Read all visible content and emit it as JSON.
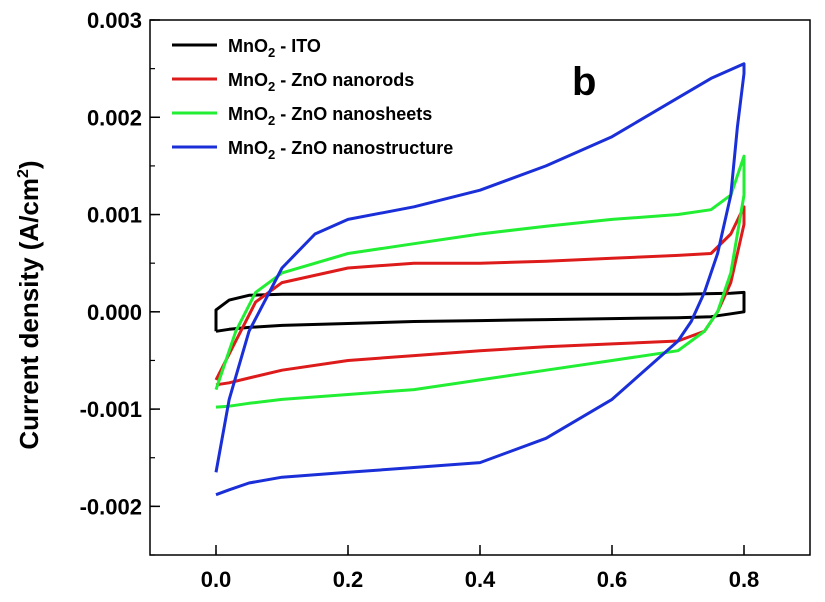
{
  "chart_data": {
    "type": "line",
    "title": "",
    "panel_label": "b",
    "ylabel_main": "Current density (A/cm",
    "ylabel_sup": "2",
    "ylabel_close": ")",
    "xlabel": "",
    "xlim": [
      -0.1,
      0.9
    ],
    "ylim": [
      -0.0025,
      0.003
    ],
    "x_ticks": [
      0.0,
      0.2,
      0.4,
      0.6,
      0.8
    ],
    "x_tick_labels": [
      "0.0",
      "0.2",
      "0.4",
      "0.6",
      "0.8"
    ],
    "y_ticks": [
      -0.002,
      -0.001,
      0.0,
      0.001,
      0.002,
      0.003
    ],
    "y_tick_labels": [
      "-0.002",
      "-0.001",
      "0.000",
      "0.001",
      "0.002",
      "0.003"
    ],
    "grid": false,
    "legend_position": "top-left",
    "series": [
      {
        "name_main": "MnO",
        "name_sub": "2",
        "name_rest": " - ITO",
        "color": "#000000",
        "x": [
          0.0,
          0.02,
          0.05,
          0.1,
          0.2,
          0.3,
          0.4,
          0.5,
          0.6,
          0.7,
          0.75,
          0.78,
          0.8,
          0.8,
          0.78,
          0.7,
          0.6,
          0.5,
          0.4,
          0.3,
          0.2,
          0.1,
          0.05,
          0.02,
          0.0,
          0.0
        ],
        "y": [
          -0.0002,
          -0.00018,
          -0.00016,
          -0.00014,
          -0.00012,
          -0.0001,
          -9e-05,
          -8e-05,
          -7e-05,
          -6e-05,
          -5e-05,
          -2e-05,
          0.0,
          0.0002,
          0.00019,
          0.00018,
          0.00018,
          0.00018,
          0.00018,
          0.00018,
          0.00018,
          0.00018,
          0.00017,
          0.00012,
          2e-05,
          -0.0002
        ]
      },
      {
        "name_main": "MnO",
        "name_sub": "2",
        "name_rest": " - ZnO nanorods",
        "color": "#dd1b1b",
        "x": [
          0.0,
          0.03,
          0.06,
          0.1,
          0.2,
          0.3,
          0.4,
          0.5,
          0.6,
          0.7,
          0.75,
          0.78,
          0.8,
          0.8,
          0.78,
          0.76,
          0.74,
          0.72,
          0.7,
          0.6,
          0.5,
          0.4,
          0.3,
          0.2,
          0.1,
          0.05,
          0.02,
          0.0
        ],
        "y": [
          -0.0007,
          -0.0003,
          0.0001,
          0.0003,
          0.00045,
          0.0005,
          0.0005,
          0.00052,
          0.00055,
          0.00058,
          0.0006,
          0.0008,
          0.00108,
          0.0009,
          0.0003,
          0.0,
          -0.0002,
          -0.00025,
          -0.0003,
          -0.00033,
          -0.00036,
          -0.0004,
          -0.00045,
          -0.0005,
          -0.0006,
          -0.00068,
          -0.00073,
          -0.00075
        ]
      },
      {
        "name_main": "MnO",
        "name_sub": "2",
        "name_rest": " - ZnO nanosheets",
        "color": "#22ee33",
        "x": [
          0.0,
          0.03,
          0.06,
          0.1,
          0.2,
          0.3,
          0.4,
          0.5,
          0.6,
          0.7,
          0.75,
          0.78,
          0.8,
          0.8,
          0.78,
          0.76,
          0.74,
          0.72,
          0.7,
          0.6,
          0.5,
          0.4,
          0.3,
          0.2,
          0.1,
          0.05,
          0.02,
          0.0
        ],
        "y": [
          -0.0008,
          -0.0002,
          0.0002,
          0.0004,
          0.0006,
          0.0007,
          0.0008,
          0.00088,
          0.00095,
          0.001,
          0.00105,
          0.0012,
          0.0016,
          0.0012,
          0.0004,
          0.0,
          -0.0002,
          -0.0003,
          -0.0004,
          -0.0005,
          -0.0006,
          -0.0007,
          -0.0008,
          -0.00085,
          -0.0009,
          -0.00094,
          -0.00097,
          -0.00098
        ]
      },
      {
        "name_main": "MnO",
        "name_sub": "2",
        "name_rest": " - ZnO nanostructure",
        "color": "#1a2fd8",
        "x": [
          0.0,
          0.02,
          0.05,
          0.1,
          0.15,
          0.2,
          0.3,
          0.4,
          0.5,
          0.6,
          0.7,
          0.75,
          0.8,
          0.8,
          0.79,
          0.78,
          0.76,
          0.74,
          0.72,
          0.7,
          0.6,
          0.5,
          0.4,
          0.3,
          0.2,
          0.1,
          0.05,
          0.02,
          0.0
        ],
        "y": [
          -0.00165,
          -0.0009,
          -0.0002,
          0.00045,
          0.0008,
          0.00095,
          0.00108,
          0.00125,
          0.0015,
          0.0018,
          0.0022,
          0.0024,
          0.00255,
          0.00245,
          0.0019,
          0.0012,
          0.0006,
          0.0002,
          -0.0001,
          -0.0003,
          -0.0009,
          -0.0013,
          -0.00155,
          -0.0016,
          -0.00165,
          -0.0017,
          -0.00176,
          -0.00183,
          -0.00188
        ]
      }
    ]
  }
}
